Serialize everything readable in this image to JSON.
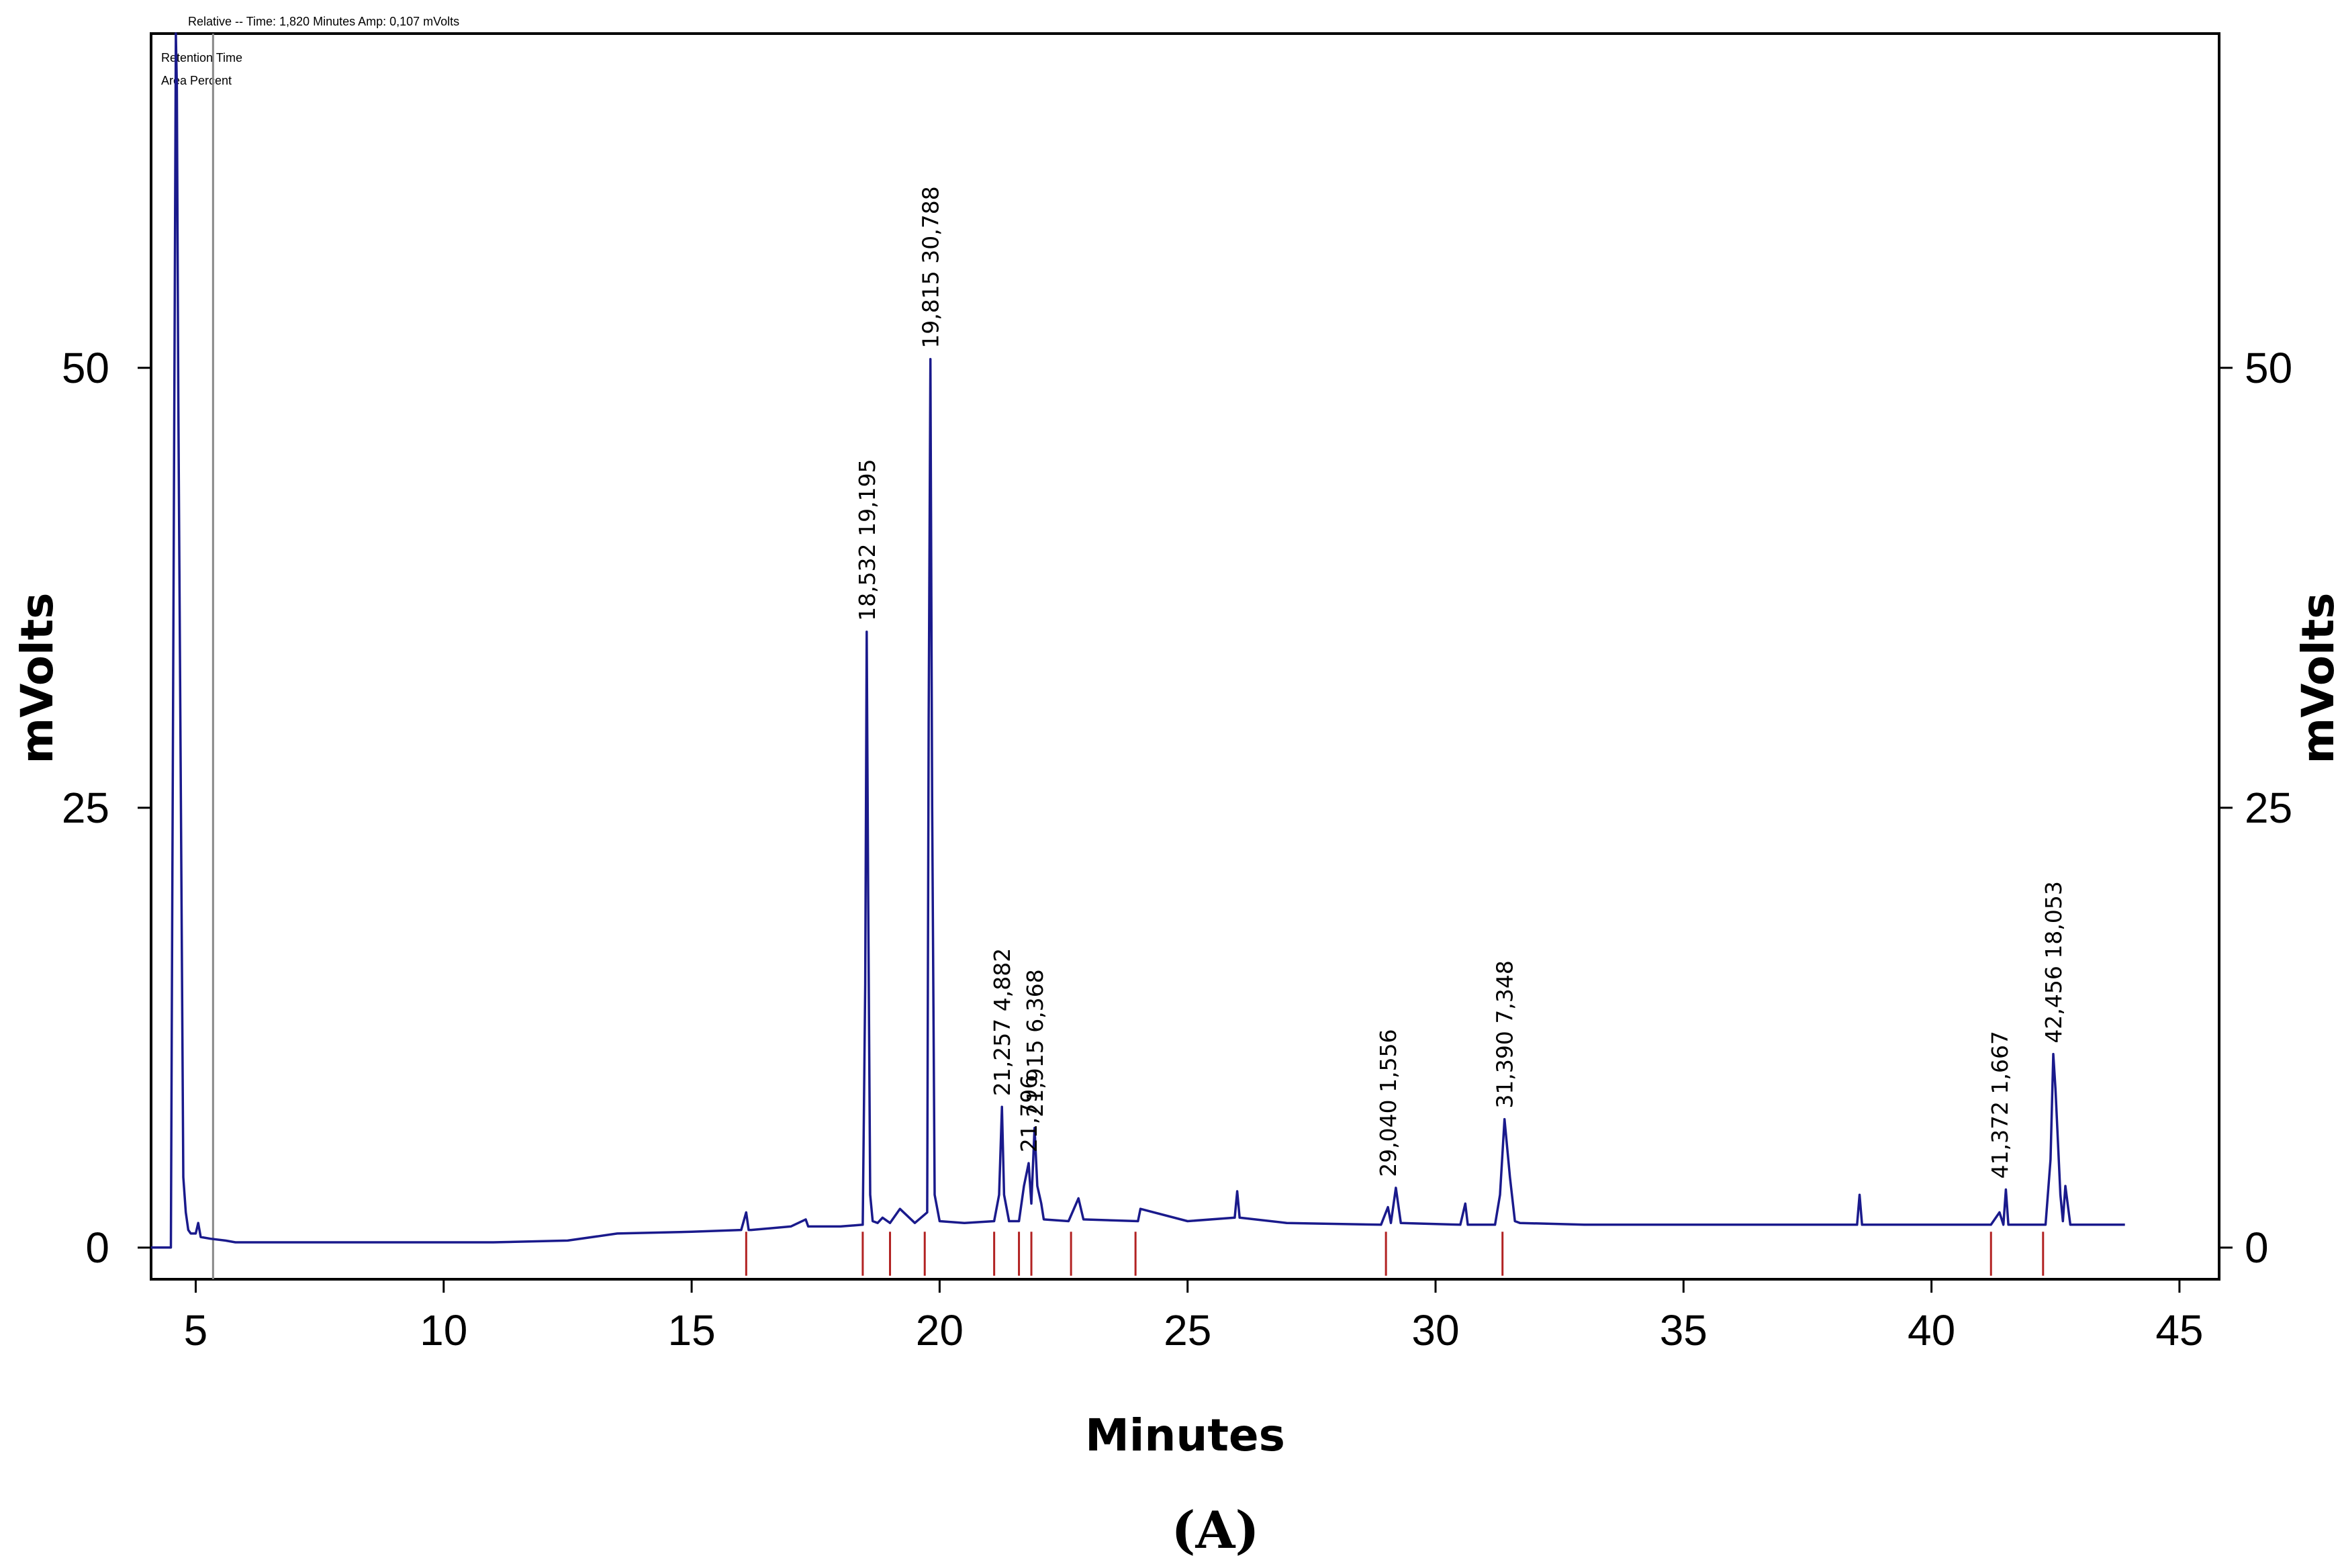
{
  "header": {
    "status_text": "Relative -- Time:    1,820 Minutes   Amp:      0,107 mVolts",
    "overlay_line1": "Retention Time",
    "overlay_line2": "Area Percent"
  },
  "figure_label": "(A)",
  "colors": {
    "trace": "#1a1a8c",
    "baseline_marker": "#b22222",
    "axes": "#000000",
    "background": "#ffffff"
  },
  "chart_data": {
    "type": "line",
    "title": "",
    "xlabel": "Minutes",
    "ylabel": "mVolts",
    "ylabel_right": "mVolts",
    "xlim": [
      4.1,
      45.8
    ],
    "ylim": [
      -1.8,
      69
    ],
    "xticks": [
      5,
      10,
      15,
      20,
      25,
      30,
      35,
      40,
      45
    ],
    "yticks": [
      0,
      25,
      50
    ],
    "grid": false,
    "legend": "none",
    "series": [
      {
        "x": [
          4.1,
          4.5,
          4.55,
          4.6,
          4.62,
          4.65,
          4.75,
          4.8,
          4.85,
          4.9,
          5.0,
          5.05,
          5.1,
          5.3,
          5.6,
          5.8,
          6.0,
          8.0,
          11.0,
          12.5,
          13.5,
          15.0,
          16.0,
          16.1,
          16.15,
          16.2,
          17.0,
          17.3,
          17.35,
          17.4,
          18.0,
          18.45,
          18.5,
          18.53,
          18.56,
          18.6,
          18.65,
          18.75,
          18.85,
          19.0,
          19.2,
          19.5,
          19.75,
          19.78,
          19.815,
          19.85,
          19.9,
          20.0,
          20.5,
          21.1,
          21.2,
          21.257,
          21.3,
          21.4,
          21.6,
          21.7,
          21.796,
          21.85,
          21.915,
          21.97,
          22.05,
          22.1,
          22.6,
          22.8,
          22.9,
          24.0,
          24.05,
          25.0,
          25.95,
          26.0,
          26.05,
          27.0,
          28.9,
          29.04,
          29.1,
          29.2,
          29.3,
          30.5,
          30.6,
          30.65,
          30.7,
          31.2,
          31.3,
          31.39,
          31.5,
          31.6,
          31.7,
          33.0,
          35.0,
          37.0,
          38.5,
          38.55,
          38.6,
          40.0,
          41.2,
          41.372,
          41.45,
          41.5,
          41.55,
          41.6,
          42.0,
          42.3,
          42.4,
          42.456,
          42.5,
          42.6,
          42.65,
          42.7,
          42.8,
          43.9
        ],
        "y": [
          0.0,
          0.0,
          35.0,
          69.0,
          66.0,
          48.0,
          4.0,
          2.0,
          1.0,
          0.8,
          0.8,
          1.4,
          0.6,
          0.5,
          0.4,
          0.3,
          0.3,
          0.3,
          0.3,
          0.4,
          0.8,
          0.9,
          1.0,
          2.0,
          1.0,
          1.0,
          1.2,
          1.6,
          1.2,
          1.2,
          1.2,
          1.3,
          15.0,
          35.0,
          20.0,
          3.0,
          1.5,
          1.4,
          1.7,
          1.4,
          2.2,
          1.4,
          2.0,
          30.0,
          50.5,
          25.0,
          3.0,
          1.5,
          1.4,
          1.5,
          3.0,
          8.0,
          3.0,
          1.5,
          1.5,
          3.5,
          4.8,
          2.5,
          6.8,
          3.5,
          2.5,
          1.6,
          1.5,
          2.8,
          1.6,
          1.5,
          2.2,
          1.5,
          1.7,
          3.2,
          1.7,
          1.4,
          1.3,
          2.3,
          1.4,
          3.4,
          1.4,
          1.3,
          2.5,
          1.3,
          1.3,
          1.3,
          3.0,
          7.3,
          4.0,
          1.5,
          1.4,
          1.3,
          1.3,
          1.3,
          1.3,
          3.0,
          1.3,
          1.3,
          1.3,
          2.0,
          1.3,
          3.3,
          1.3,
          1.3,
          1.3,
          1.3,
          5.0,
          11.0,
          9.0,
          3.0,
          1.5,
          3.5,
          1.3,
          1.3
        ]
      }
    ],
    "peak_labels": [
      {
        "x": 18.532,
        "y": 35.0,
        "text": "18,532 19,195"
      },
      {
        "x": 19.815,
        "y": 50.5,
        "text": "19,815 30,788"
      },
      {
        "x": 21.257,
        "y": 8.0,
        "text": "21,257 4,882"
      },
      {
        "x": 21.796,
        "y": 4.8,
        "text": "21,796"
      },
      {
        "x": 21.915,
        "y": 6.8,
        "text": "21,915 6,368"
      },
      {
        "x": 29.04,
        "y": 3.4,
        "text": "29,040 1,556"
      },
      {
        "x": 31.39,
        "y": 7.3,
        "text": "31,390 7,348"
      },
      {
        "x": 41.372,
        "y": 3.3,
        "text": "41,372 1,667"
      },
      {
        "x": 42.456,
        "y": 11.0,
        "text": "42,456 18,053"
      }
    ],
    "baseline_markers": [
      16.1,
      18.45,
      19.0,
      19.7,
      21.1,
      21.6,
      21.85,
      22.65,
      23.95,
      29.0,
      31.35,
      41.2,
      42.25
    ],
    "cursor_lines": [
      5.35
    ]
  }
}
